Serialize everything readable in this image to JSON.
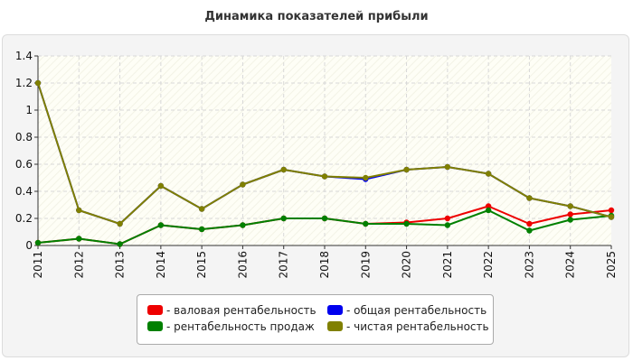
{
  "title": "Динамика показателей прибыли",
  "colors": {
    "valovaya": "#ee0000",
    "obshaya": "#0000ee",
    "prodazh": "#008000",
    "chistaya": "#808000"
  },
  "legend": {
    "valovaya": "- валовая рентабельность",
    "obshaya": "- общая рентабельность",
    "prodazh": "- рентабельность продаж",
    "chistaya": "- чистая рентабельность"
  },
  "chart_data": {
    "type": "line",
    "title": "Динамика показателей прибыли",
    "x": [
      "2011",
      "2012",
      "2013",
      "2014",
      "2015",
      "2016",
      "2017",
      "2018",
      "2019",
      "2020",
      "2021",
      "2022",
      "2023",
      "2024",
      "2025"
    ],
    "ylim": [
      0,
      1.4
    ],
    "yticks": [
      "0",
      "0.2",
      "0.4",
      "0.6",
      "0.8",
      "1",
      "1.2",
      "1.4"
    ],
    "grid": true,
    "legend_position": "bottom",
    "series": [
      {
        "key": "valovaya",
        "name": "- валовая рентабельность",
        "color": "#ee0000",
        "values": [
          0.02,
          0.05,
          0.01,
          0.15,
          0.12,
          0.15,
          0.2,
          0.2,
          0.16,
          0.17,
          0.2,
          0.29,
          0.16,
          0.23,
          0.26
        ]
      },
      {
        "key": "obshaya",
        "name": "- общая рентабельность",
        "color": "#0000ee",
        "values": [
          1.2,
          0.26,
          0.16,
          0.44,
          0.27,
          0.45,
          0.56,
          0.51,
          0.49,
          0.56,
          0.58,
          0.53,
          0.35,
          0.29,
          0.21
        ]
      },
      {
        "key": "prodazh",
        "name": "- рентабельность продаж",
        "color": "#008000",
        "values": [
          0.02,
          0.05,
          0.01,
          0.15,
          0.12,
          0.15,
          0.2,
          0.2,
          0.16,
          0.16,
          0.15,
          0.26,
          0.11,
          0.19,
          0.22
        ]
      },
      {
        "key": "chistaya",
        "name": "- чистая рентабельность",
        "color": "#808000",
        "values": [
          1.2,
          0.26,
          0.16,
          0.44,
          0.27,
          0.45,
          0.56,
          0.51,
          0.5,
          0.56,
          0.58,
          0.53,
          0.35,
          0.29,
          0.21
        ]
      }
    ]
  }
}
